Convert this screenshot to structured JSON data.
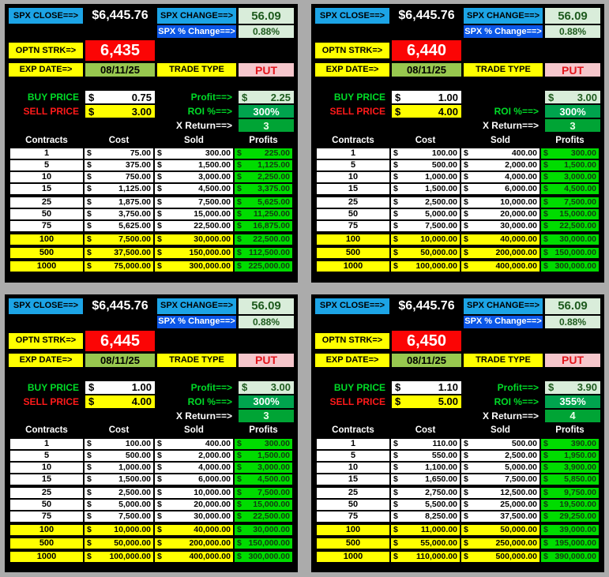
{
  "labels": {
    "spx_close": "SPX CLOSE==>",
    "spx_change": "SPX CHANGE==>",
    "spx_pct_change": "SPX % Change==>",
    "optn_strk": "OPTN STRK=>",
    "exp_date": "EXP DATE=>",
    "trade_type": "TRADE TYPE",
    "buy_price": "BUY PRICE",
    "sell_price": "SELL PRICE",
    "roi": "ROI %==>",
    "x_return": "X Return==>",
    "dollar": "$",
    "table_headers": {
      "contracts": "Contracts",
      "cost": "Cost",
      "sold": "Sold",
      "profits": "Profits"
    }
  },
  "colors": {
    "page_bg": "#ABABAB",
    "panel_bg": "#000000",
    "label_cyan": "#1CA4E6",
    "label_royal_blue": "#0B57E8",
    "value_light_green": "#D9EDDA",
    "highlight_yellow": "#FFFF00",
    "strike_red": "#FB0505",
    "exp_date_green": "#98C84F",
    "put_pink": "#F5C6CB",
    "roi_green": "#00A44E",
    "x_return_green": "#00A435",
    "profit_cell_green": "#00DC00"
  },
  "quadrants": [
    {
      "spx_close_value": "$6,445.76",
      "spx_change_value": "56.09",
      "spx_pct_change_value": "0.88%",
      "strike": "6,435",
      "exp_date_value": "08/11/25",
      "trade_type_value": "PUT",
      "buy_price": "0.75",
      "sell_price": "3.00",
      "profit_label": "Profit==>",
      "profit_value": "2.25",
      "roi_value": "300%",
      "x_return_value": "3",
      "rows": [
        {
          "contracts": "1",
          "cost": "75.00",
          "sold": "300.00",
          "profit": "225.00"
        },
        {
          "contracts": "5",
          "cost": "375.00",
          "sold": "1,500.00",
          "profit": "1,125.00"
        },
        {
          "contracts": "10",
          "cost": "750.00",
          "sold": "3,000.00",
          "profit": "2,250.00"
        },
        {
          "contracts": "15",
          "cost": "1,125.00",
          "sold": "4,500.00",
          "profit": "3,375.00"
        },
        {
          "contracts": "25",
          "cost": "1,875.00",
          "sold": "7,500.00",
          "profit": "5,625.00",
          "group_start": true
        },
        {
          "contracts": "50",
          "cost": "3,750.00",
          "sold": "15,000.00",
          "profit": "11,250.00"
        },
        {
          "contracts": "75",
          "cost": "5,625.00",
          "sold": "22,500.00",
          "profit": "16,875.00"
        },
        {
          "contracts": "100",
          "cost": "7,500.00",
          "sold": "30,000.00",
          "profit": "22,500.00",
          "highlight": true,
          "group_start": true
        },
        {
          "contracts": "500",
          "cost": "37,500.00",
          "sold": "150,000.00",
          "profit": "112,500.00",
          "highlight": true,
          "group_start": true
        },
        {
          "contracts": "1000",
          "cost": "75,000.00",
          "sold": "300,000.00",
          "profit": "225,000.00",
          "highlight": true,
          "group_start": true
        }
      ]
    },
    {
      "spx_close_value": "$6,445.76",
      "spx_change_value": "56.09",
      "spx_pct_change_value": "0.88%",
      "strike": "6,440",
      "exp_date_value": "08/11/25",
      "trade_type_value": "PUT",
      "buy_price": "1.00",
      "sell_price": "4.00",
      "profit_label": "",
      "profit_value": "3.00",
      "roi_value": "300%",
      "x_return_value": "3",
      "rows": [
        {
          "contracts": "1",
          "cost": "100.00",
          "sold": "400.00",
          "profit": "300.00"
        },
        {
          "contracts": "5",
          "cost": "500.00",
          "sold": "2,000.00",
          "profit": "1,500.00"
        },
        {
          "contracts": "10",
          "cost": "1,000.00",
          "sold": "4,000.00",
          "profit": "3,000.00"
        },
        {
          "contracts": "15",
          "cost": "1,500.00",
          "sold": "6,000.00",
          "profit": "4,500.00"
        },
        {
          "contracts": "25",
          "cost": "2,500.00",
          "sold": "10,000.00",
          "profit": "7,500.00",
          "group_start": true
        },
        {
          "contracts": "50",
          "cost": "5,000.00",
          "sold": "20,000.00",
          "profit": "15,000.00"
        },
        {
          "contracts": "75",
          "cost": "7,500.00",
          "sold": "30,000.00",
          "profit": "22,500.00"
        },
        {
          "contracts": "100",
          "cost": "10,000.00",
          "sold": "40,000.00",
          "profit": "30,000.00",
          "highlight": true,
          "group_start": true
        },
        {
          "contracts": "500",
          "cost": "50,000.00",
          "sold": "200,000.00",
          "profit": "150,000.00",
          "highlight": true,
          "group_start": true
        },
        {
          "contracts": "1000",
          "cost": "100,000.00",
          "sold": "400,000.00",
          "profit": "300,000.00",
          "highlight": true,
          "group_start": true
        }
      ]
    },
    {
      "spx_close_value": "$6,445.76",
      "spx_change_value": "56.09",
      "spx_pct_change_value": "0.88%",
      "strike": "6,445",
      "exp_date_value": "08/11/25",
      "trade_type_value": "PUT",
      "buy_price": "1.00",
      "sell_price": "4.00",
      "profit_label": "Profit==>",
      "profit_value": "3.00",
      "roi_value": "300%",
      "x_return_value": "3",
      "rows": [
        {
          "contracts": "1",
          "cost": "100.00",
          "sold": "400.00",
          "profit": "300.00"
        },
        {
          "contracts": "5",
          "cost": "500.00",
          "sold": "2,000.00",
          "profit": "1,500.00"
        },
        {
          "contracts": "10",
          "cost": "1,000.00",
          "sold": "4,000.00",
          "profit": "3,000.00"
        },
        {
          "contracts": "15",
          "cost": "1,500.00",
          "sold": "6,000.00",
          "profit": "4,500.00"
        },
        {
          "contracts": "25",
          "cost": "2,500.00",
          "sold": "10,000.00",
          "profit": "7,500.00",
          "group_start": true
        },
        {
          "contracts": "50",
          "cost": "5,000.00",
          "sold": "20,000.00",
          "profit": "15,000.00"
        },
        {
          "contracts": "75",
          "cost": "7,500.00",
          "sold": "30,000.00",
          "profit": "22,500.00"
        },
        {
          "contracts": "100",
          "cost": "10,000.00",
          "sold": "40,000.00",
          "profit": "30,000.00",
          "highlight": true,
          "group_start": true
        },
        {
          "contracts": "500",
          "cost": "50,000.00",
          "sold": "200,000.00",
          "profit": "150,000.00",
          "highlight": true,
          "group_start": true
        },
        {
          "contracts": "1000",
          "cost": "100,000.00",
          "sold": "400,000.00",
          "profit": "300,000.00",
          "highlight": true,
          "group_start": true
        }
      ]
    },
    {
      "spx_close_value": "$6,445.76",
      "spx_change_value": "56.09",
      "spx_pct_change_value": "0.88%",
      "strike": "6,450",
      "exp_date_value": "08/11/25",
      "trade_type_value": "PUT",
      "buy_price": "1.10",
      "sell_price": "5.00",
      "profit_label": "Profit==>",
      "profit_value": "3.90",
      "roi_value": "355%",
      "x_return_value": "4",
      "rows": [
        {
          "contracts": "1",
          "cost": "110.00",
          "sold": "500.00",
          "profit": "390.00"
        },
        {
          "contracts": "5",
          "cost": "550.00",
          "sold": "2,500.00",
          "profit": "1,950.00"
        },
        {
          "contracts": "10",
          "cost": "1,100.00",
          "sold": "5,000.00",
          "profit": "3,900.00"
        },
        {
          "contracts": "15",
          "cost": "1,650.00",
          "sold": "7,500.00",
          "profit": "5,850.00"
        },
        {
          "contracts": "25",
          "cost": "2,750.00",
          "sold": "12,500.00",
          "profit": "9,750.00",
          "group_start": true
        },
        {
          "contracts": "50",
          "cost": "5,500.00",
          "sold": "25,000.00",
          "profit": "19,500.00"
        },
        {
          "contracts": "75",
          "cost": "8,250.00",
          "sold": "37,500.00",
          "profit": "29,250.00"
        },
        {
          "contracts": "100",
          "cost": "11,000.00",
          "sold": "50,000.00",
          "profit": "39,000.00",
          "highlight": true,
          "group_start": true
        },
        {
          "contracts": "500",
          "cost": "55,000.00",
          "sold": "250,000.00",
          "profit": "195,000.00",
          "highlight": true,
          "group_start": true
        },
        {
          "contracts": "1000",
          "cost": "110,000.00",
          "sold": "500,000.00",
          "profit": "390,000.00",
          "highlight": true,
          "group_start": true
        }
      ]
    }
  ]
}
